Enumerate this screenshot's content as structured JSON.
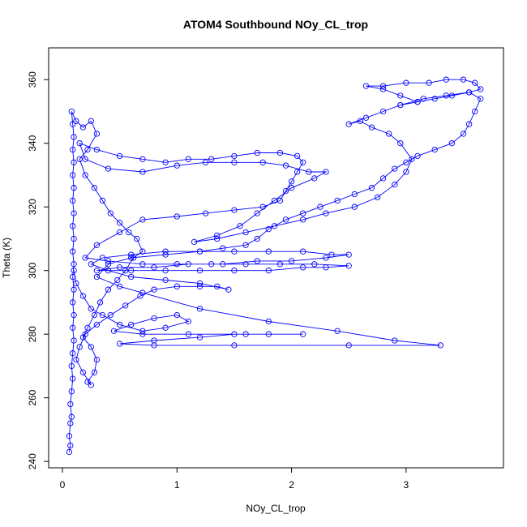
{
  "chart_data": {
    "type": "line",
    "title": "ATOM4 Southbound NOy_CL_trop",
    "xlabel": "NOy_CL_trop",
    "ylabel": "Theta (K)",
    "xlim": [
      -0.12,
      3.85
    ],
    "ylim": [
      238,
      370
    ],
    "x_ticks": [
      0,
      1,
      2,
      3
    ],
    "y_ticks": [
      240,
      260,
      280,
      300,
      320,
      340,
      360
    ],
    "grid": false,
    "legend": "none",
    "marker": "open-circle",
    "series": [
      {
        "color": "#0000ff",
        "points": [
          [
            0.06,
            243
          ],
          [
            0.07,
            245
          ],
          [
            0.06,
            248
          ],
          [
            0.07,
            252
          ],
          [
            0.08,
            254
          ],
          [
            0.07,
            258
          ],
          [
            0.08,
            262
          ],
          [
            0.09,
            266
          ],
          [
            0.08,
            270
          ],
          [
            0.09,
            274
          ],
          [
            0.1,
            278
          ],
          [
            0.09,
            282
          ],
          [
            0.1,
            286
          ],
          [
            0.09,
            290
          ],
          [
            0.1,
            294
          ],
          [
            0.09,
            298
          ],
          [
            0.1,
            302
          ],
          [
            0.09,
            306
          ],
          [
            0.1,
            310
          ],
          [
            0.09,
            314
          ],
          [
            0.1,
            318
          ],
          [
            0.09,
            322
          ],
          [
            0.1,
            326
          ],
          [
            0.09,
            330
          ],
          [
            0.1,
            334
          ],
          [
            0.09,
            338
          ],
          [
            0.1,
            342
          ],
          [
            0.09,
            346
          ],
          [
            0.08,
            350
          ],
          [
            0.12,
            347
          ],
          [
            0.18,
            345
          ],
          [
            0.25,
            347
          ],
          [
            0.3,
            343
          ],
          [
            0.22,
            338
          ],
          [
            0.15,
            335
          ],
          [
            0.2,
            330
          ],
          [
            0.28,
            326
          ],
          [
            0.35,
            322
          ],
          [
            0.42,
            318
          ],
          [
            0.5,
            315
          ],
          [
            0.58,
            312
          ],
          [
            0.65,
            310
          ],
          [
            0.7,
            306
          ],
          [
            0.62,
            304
          ],
          [
            0.55,
            300
          ],
          [
            0.48,
            297
          ],
          [
            0.4,
            294
          ],
          [
            0.33,
            290
          ],
          [
            0.28,
            286
          ],
          [
            0.22,
            282
          ],
          [
            0.18,
            279
          ],
          [
            0.25,
            276
          ],
          [
            0.3,
            272
          ],
          [
            0.28,
            268
          ],
          [
            0.22,
            265
          ],
          [
            0.25,
            264
          ],
          [
            0.18,
            268
          ],
          [
            0.12,
            272
          ],
          [
            0.15,
            276
          ],
          [
            0.2,
            280
          ],
          [
            0.3,
            283
          ],
          [
            0.42,
            286
          ],
          [
            0.55,
            289
          ],
          [
            0.68,
            292
          ],
          [
            0.8,
            294
          ],
          [
            1.0,
            295
          ],
          [
            1.2,
            295
          ],
          [
            1.35,
            295
          ],
          [
            1.45,
            294
          ],
          [
            1.2,
            296
          ],
          [
            0.9,
            297
          ],
          [
            0.6,
            298
          ],
          [
            0.4,
            300
          ],
          [
            0.25,
            302
          ],
          [
            0.35,
            304
          ],
          [
            0.6,
            305
          ],
          [
            0.9,
            306
          ],
          [
            1.2,
            306
          ],
          [
            1.5,
            306
          ],
          [
            1.8,
            306
          ],
          [
            2.1,
            306
          ],
          [
            2.35,
            305
          ],
          [
            2.5,
            305
          ],
          [
            2.3,
            304
          ],
          [
            2.0,
            303
          ],
          [
            1.7,
            303
          ],
          [
            1.4,
            302
          ],
          [
            1.1,
            302
          ],
          [
            0.8,
            301
          ],
          [
            0.5,
            301
          ],
          [
            0.3,
            300
          ],
          [
            0.6,
            300
          ],
          [
            0.9,
            300
          ],
          [
            1.2,
            300
          ],
          [
            1.5,
            300
          ],
          [
            1.8,
            300
          ],
          [
            2.1,
            301
          ],
          [
            2.3,
            301
          ],
          [
            2.5,
            301.5
          ],
          [
            2.2,
            302
          ],
          [
            1.9,
            302
          ],
          [
            1.6,
            302
          ],
          [
            1.3,
            302
          ],
          [
            1.0,
            302
          ],
          [
            0.7,
            302
          ],
          [
            0.4,
            303
          ],
          [
            0.2,
            304
          ],
          [
            0.3,
            308
          ],
          [
            0.5,
            312
          ],
          [
            0.7,
            316
          ],
          [
            1.0,
            317
          ],
          [
            1.25,
            318
          ],
          [
            1.5,
            319
          ],
          [
            1.75,
            320
          ],
          [
            1.9,
            322
          ],
          [
            1.95,
            325
          ],
          [
            2.0,
            328
          ],
          [
            2.05,
            331
          ],
          [
            2.1,
            334
          ],
          [
            2.05,
            336
          ],
          [
            1.9,
            337
          ],
          [
            1.7,
            337
          ],
          [
            1.5,
            336
          ],
          [
            1.3,
            335
          ],
          [
            1.1,
            335
          ],
          [
            0.9,
            334
          ],
          [
            0.7,
            335
          ],
          [
            0.5,
            336
          ],
          [
            0.3,
            338
          ],
          [
            0.15,
            340
          ],
          [
            0.2,
            335
          ],
          [
            0.4,
            332
          ],
          [
            0.7,
            331
          ],
          [
            1.0,
            333
          ],
          [
            1.25,
            334
          ],
          [
            1.5,
            334
          ],
          [
            1.75,
            334
          ],
          [
            1.95,
            333
          ],
          [
            2.15,
            331
          ],
          [
            2.3,
            331
          ],
          [
            2.2,
            329
          ],
          [
            2.0,
            326
          ],
          [
            1.85,
            322
          ],
          [
            1.7,
            318
          ],
          [
            1.55,
            314
          ],
          [
            1.35,
            311
          ],
          [
            1.15,
            309
          ],
          [
            1.35,
            310
          ],
          [
            1.6,
            312
          ],
          [
            1.85,
            314
          ],
          [
            2.1,
            316
          ],
          [
            2.3,
            318
          ],
          [
            2.55,
            320
          ],
          [
            2.75,
            323
          ],
          [
            2.9,
            327
          ],
          [
            3.0,
            331
          ],
          [
            3.05,
            335
          ],
          [
            2.95,
            340
          ],
          [
            2.85,
            343
          ],
          [
            2.7,
            345
          ],
          [
            2.6,
            347
          ],
          [
            2.5,
            346
          ],
          [
            2.65,
            348
          ],
          [
            2.8,
            350
          ],
          [
            2.95,
            352
          ],
          [
            3.1,
            353
          ],
          [
            2.95,
            355
          ],
          [
            2.8,
            357
          ],
          [
            2.65,
            358
          ],
          [
            2.8,
            358
          ],
          [
            3.0,
            359
          ],
          [
            3.2,
            359
          ],
          [
            3.35,
            360
          ],
          [
            3.5,
            360
          ],
          [
            3.6,
            359
          ],
          [
            3.65,
            357
          ],
          [
            3.55,
            356
          ],
          [
            3.4,
            355
          ],
          [
            3.25,
            354
          ],
          [
            3.1,
            353
          ],
          [
            2.95,
            352
          ],
          [
            3.15,
            354
          ],
          [
            3.35,
            355
          ],
          [
            3.55,
            356
          ],
          [
            3.65,
            354
          ],
          [
            3.6,
            350
          ],
          [
            3.55,
            346
          ],
          [
            3.5,
            343
          ],
          [
            3.4,
            340
          ],
          [
            3.25,
            338
          ],
          [
            3.1,
            336
          ],
          [
            3.0,
            334
          ],
          [
            2.9,
            332
          ],
          [
            2.8,
            329
          ],
          [
            2.7,
            326
          ],
          [
            2.55,
            324
          ],
          [
            2.4,
            322
          ],
          [
            2.25,
            320
          ],
          [
            2.1,
            318
          ],
          [
            1.95,
            316
          ],
          [
            1.8,
            313
          ],
          [
            1.7,
            310
          ],
          [
            1.6,
            308
          ],
          [
            1.4,
            307
          ],
          [
            1.2,
            306
          ],
          [
            0.9,
            305
          ],
          [
            0.6,
            304
          ],
          [
            0.4,
            302
          ],
          [
            0.3,
            298
          ],
          [
            0.5,
            295
          ],
          [
            0.7,
            293
          ],
          [
            1.2,
            288
          ],
          [
            1.8,
            284
          ],
          [
            2.4,
            281
          ],
          [
            2.9,
            278
          ],
          [
            3.3,
            276.5
          ],
          [
            2.5,
            276.5
          ],
          [
            1.5,
            276.5
          ],
          [
            0.8,
            276.5
          ],
          [
            0.5,
            277
          ],
          [
            0.8,
            278
          ],
          [
            1.2,
            279
          ],
          [
            1.5,
            280
          ],
          [
            1.8,
            280
          ],
          [
            2.1,
            280
          ],
          [
            1.6,
            280
          ],
          [
            1.1,
            280
          ],
          [
            0.7,
            280
          ],
          [
            0.45,
            281
          ],
          [
            0.6,
            283
          ],
          [
            0.8,
            285
          ],
          [
            1.0,
            286
          ],
          [
            1.1,
            284
          ],
          [
            0.9,
            282
          ],
          [
            0.7,
            281
          ],
          [
            0.5,
            283
          ],
          [
            0.35,
            286
          ],
          [
            0.25,
            288
          ],
          [
            0.18,
            292
          ],
          [
            0.12,
            296
          ],
          [
            0.1,
            300
          ]
        ]
      }
    ]
  }
}
